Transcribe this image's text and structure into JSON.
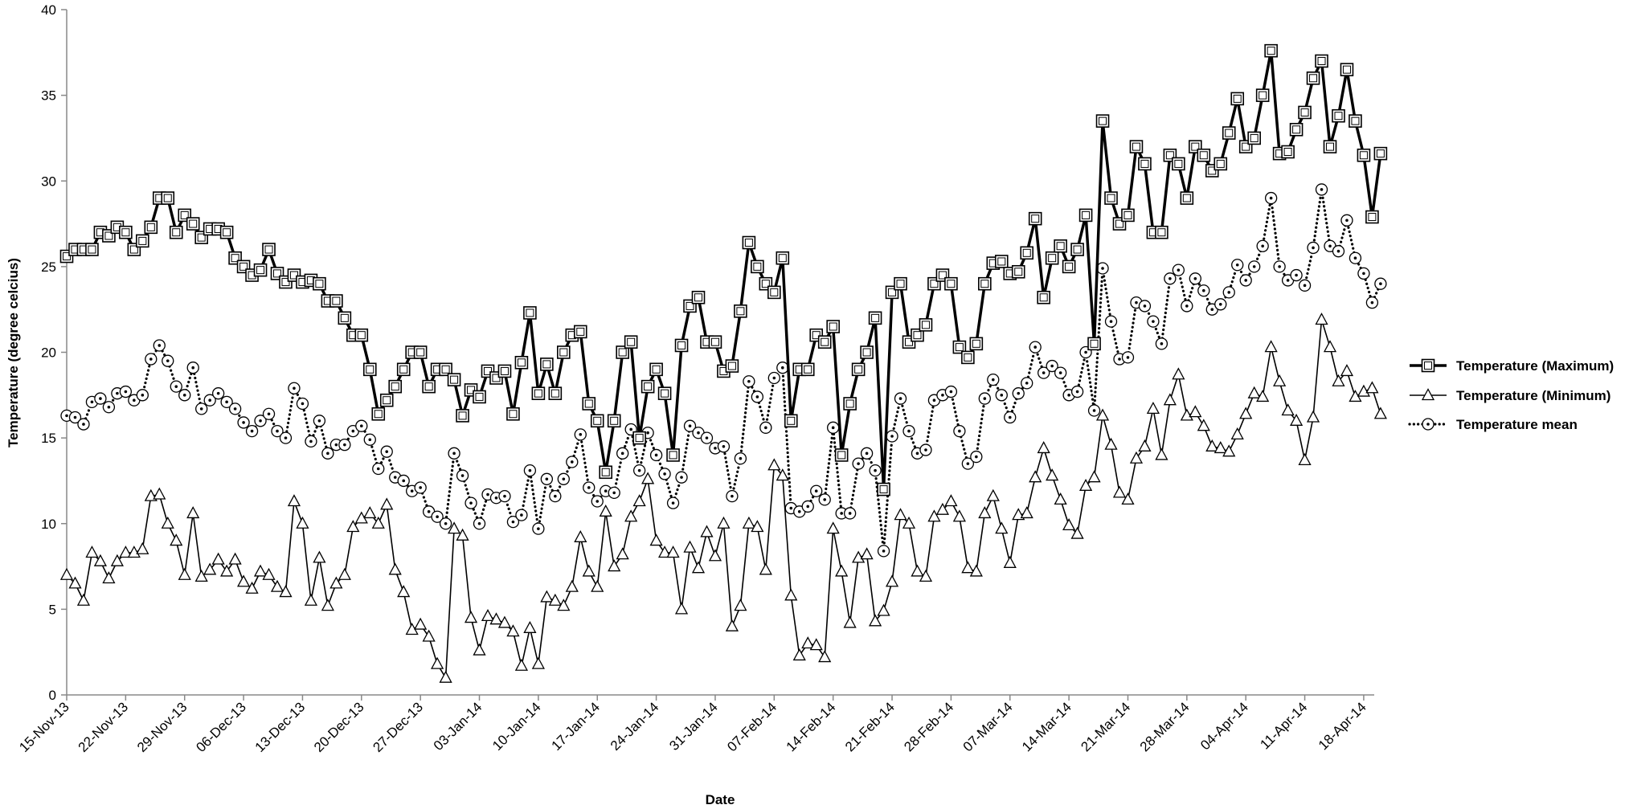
{
  "chart_data": {
    "type": "line",
    "title": "",
    "xlabel": "Date",
    "ylabel": "Temperature (degree celcius)",
    "ylim": [
      0,
      40
    ],
    "yticks": [
      0,
      5,
      10,
      15,
      20,
      25,
      30,
      35,
      40
    ],
    "grid": false,
    "legend_position": "right",
    "x_start": "15-Nov-13",
    "x_end": "21-Apr-14",
    "x_tick_labels": [
      "15-Nov-13",
      "22-Nov-13",
      "29-Nov-13",
      "06-Dec-13",
      "13-Dec-13",
      "20-Dec-13",
      "27-Dec-13",
      "03-Jan-14",
      "10-Jan-14",
      "17-Jan-14",
      "24-Jan-14",
      "31-Jan-14",
      "07-Feb-14",
      "14-Feb-14",
      "21-Feb-14",
      "28-Feb-14",
      "07-Mar-14",
      "14-Mar-14",
      "21-Mar-14",
      "28-Mar-14",
      "04-Apr-14",
      "11-Apr-14",
      "18-Apr-14"
    ],
    "series": [
      {
        "name": "Temperature (Maximum)",
        "marker": "square",
        "line": "solid-thick",
        "color": "#000000",
        "values": [
          25.6,
          26.0,
          26.0,
          26.0,
          27.0,
          26.8,
          27.3,
          27.0,
          26.0,
          26.5,
          27.3,
          29.0,
          29.0,
          27.0,
          28.0,
          27.5,
          26.7,
          27.2,
          27.2,
          27.0,
          25.5,
          25.0,
          24.5,
          24.8,
          26.0,
          24.6,
          24.1,
          24.5,
          24.1,
          24.2,
          24.0,
          23.0,
          23.0,
          22.0,
          21.0,
          21.0,
          19.0,
          16.4,
          17.2,
          18.0,
          19.0,
          20.0,
          20.0,
          18.0,
          19.0,
          19.0,
          18.4,
          16.3,
          17.8,
          17.4,
          18.9,
          18.5,
          18.9,
          16.4,
          19.4,
          22.3,
          17.6,
          19.3,
          17.6,
          20.0,
          21.0,
          21.2,
          17.0,
          16.0,
          13.0,
          16.0,
          20.0,
          20.6,
          15.0,
          18.0,
          19.0,
          17.6,
          14.0,
          20.4,
          22.7,
          23.2,
          20.6,
          20.6,
          18.9,
          19.2,
          22.4,
          26.4,
          25.0,
          24.0,
          23.5,
          25.5,
          16.0,
          19.0,
          19.0,
          21.0,
          20.6,
          21.5,
          14.0,
          17.0,
          19.0,
          20.0,
          22.0,
          12.0,
          23.5,
          24.0,
          20.6,
          21.0,
          21.6,
          24.0,
          24.5,
          24.0,
          20.3,
          19.7,
          20.5,
          24.0,
          25.2,
          25.3,
          24.6,
          24.7,
          25.8,
          27.8,
          23.2,
          25.5,
          26.2,
          25.0,
          26.0,
          28.0,
          20.5,
          33.5,
          29.0,
          27.5,
          28.0,
          32.0,
          31.0,
          27.0,
          27.0,
          31.5,
          31.0,
          29.0,
          32.0,
          31.5,
          30.6,
          31.0,
          32.8,
          34.8,
          32.0,
          32.5,
          35.0,
          37.6,
          31.6,
          31.7,
          33.0,
          34.0,
          36.0,
          37.0,
          32.0,
          33.8,
          36.5,
          33.5,
          31.5,
          27.9,
          31.6
        ]
      },
      {
        "name": "Temperature (Minimum)",
        "marker": "triangle",
        "line": "solid-thin",
        "color": "#000000",
        "values": [
          7.0,
          6.5,
          5.5,
          8.3,
          7.8,
          6.8,
          7.8,
          8.3,
          8.3,
          8.5,
          11.6,
          11.7,
          10.0,
          9.0,
          7.0,
          10.6,
          6.9,
          7.3,
          7.9,
          7.2,
          7.9,
          6.6,
          6.2,
          7.2,
          7.0,
          6.3,
          6.0,
          11.3,
          10.0,
          5.5,
          8.0,
          5.2,
          6.5,
          7.0,
          9.8,
          10.3,
          10.6,
          10.0,
          11.1,
          7.3,
          6.0,
          3.8,
          4.1,
          3.4,
          1.8,
          1.0,
          9.7,
          9.3,
          4.5,
          2.6,
          4.6,
          4.4,
          4.2,
          3.7,
          1.7,
          3.9,
          1.8,
          5.7,
          5.5,
          5.2,
          6.3,
          9.2,
          7.2,
          6.3,
          10.7,
          7.5,
          8.2,
          10.4,
          11.3,
          12.6,
          9.0,
          8.3,
          8.3,
          5.0,
          8.6,
          7.4,
          9.5,
          8.1,
          10.0,
          4.0,
          5.2,
          10.0,
          9.8,
          7.3,
          13.4,
          12.8,
          5.8,
          2.3,
          3.0,
          2.9,
          2.2,
          9.7,
          7.2,
          4.2,
          8.0,
          8.2,
          4.3,
          4.9,
          6.6,
          10.5,
          10.0,
          7.2,
          6.9,
          10.4,
          10.8,
          11.3,
          10.4,
          7.4,
          7.2,
          10.6,
          11.6,
          9.7,
          7.7,
          10.5,
          10.6,
          12.7,
          14.4,
          12.8,
          11.4,
          9.9,
          9.4,
          12.2,
          12.7,
          16.3,
          14.6,
          11.8,
          11.4,
          13.8,
          14.5,
          16.7,
          14.0,
          17.2,
          18.7,
          16.3,
          16.5,
          15.7,
          14.5,
          14.4,
          14.2,
          15.2,
          16.4,
          17.6,
          17.4,
          20.3,
          18.3,
          16.6,
          16.0,
          13.7,
          16.2,
          21.9,
          20.3,
          18.3,
          18.9,
          17.4,
          17.7,
          17.9,
          16.4
        ]
      },
      {
        "name": "Temperature mean",
        "marker": "circle",
        "line": "dotted",
        "color": "#000000",
        "values": [
          16.3,
          16.2,
          15.8,
          17.1,
          17.3,
          16.8,
          17.6,
          17.7,
          17.2,
          17.5,
          19.6,
          20.4,
          19.5,
          18.0,
          17.5,
          19.1,
          16.7,
          17.2,
          17.6,
          17.1,
          16.7,
          15.9,
          15.4,
          16.0,
          16.4,
          15.4,
          15.0,
          17.9,
          17.0,
          14.8,
          16.0,
          14.1,
          14.6,
          14.6,
          15.4,
          15.7,
          14.9,
          13.2,
          14.2,
          12.7,
          12.5,
          11.9,
          12.1,
          10.7,
          10.4,
          10.0,
          14.1,
          12.8,
          11.2,
          10.0,
          11.7,
          11.5,
          11.6,
          10.1,
          10.5,
          13.1,
          9.7,
          12.6,
          11.6,
          12.6,
          13.6,
          15.2,
          12.1,
          11.3,
          11.9,
          11.8,
          14.1,
          15.5,
          13.1,
          15.3,
          14.0,
          12.9,
          11.2,
          12.7,
          15.7,
          15.3,
          15.0,
          14.4,
          14.5,
          11.6,
          13.8,
          18.3,
          17.4,
          15.6,
          18.5,
          19.1,
          10.9,
          10.7,
          11.0,
          11.9,
          11.4,
          15.6,
          10.6,
          10.6,
          13.5,
          14.1,
          13.1,
          8.4,
          15.1,
          17.3,
          15.4,
          14.1,
          14.3,
          17.2,
          17.5,
          17.7,
          15.4,
          13.5,
          13.9,
          17.3,
          18.4,
          17.5,
          16.2,
          17.6,
          18.2,
          20.3,
          18.8,
          19.2,
          18.8,
          17.5,
          17.7,
          20.0,
          16.6,
          24.9,
          21.8,
          19.6,
          19.7,
          22.9,
          22.7,
          21.8,
          20.5,
          24.3,
          24.8,
          22.7,
          24.3,
          23.6,
          22.5,
          22.8,
          23.5,
          25.1,
          24.2,
          25.0,
          26.2,
          29.0,
          25.0,
          24.2,
          24.5,
          23.9,
          26.1,
          29.5,
          26.2,
          25.9,
          27.7,
          25.5,
          24.6,
          22.9,
          24.0
        ]
      }
    ]
  }
}
